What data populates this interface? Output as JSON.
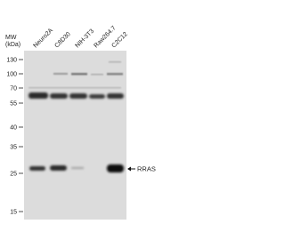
{
  "lanes": [
    "Neuro2A",
    "C8D30",
    "NIH-3T3",
    "Raw264.7",
    "C2C12"
  ],
  "mw_label": {
    "line1": "MW",
    "line2": "(kDa)"
  },
  "markers": [
    "130",
    "100",
    "70",
    "55",
    "40",
    "35",
    "25",
    "15"
  ],
  "band_label": "RRAS"
}
